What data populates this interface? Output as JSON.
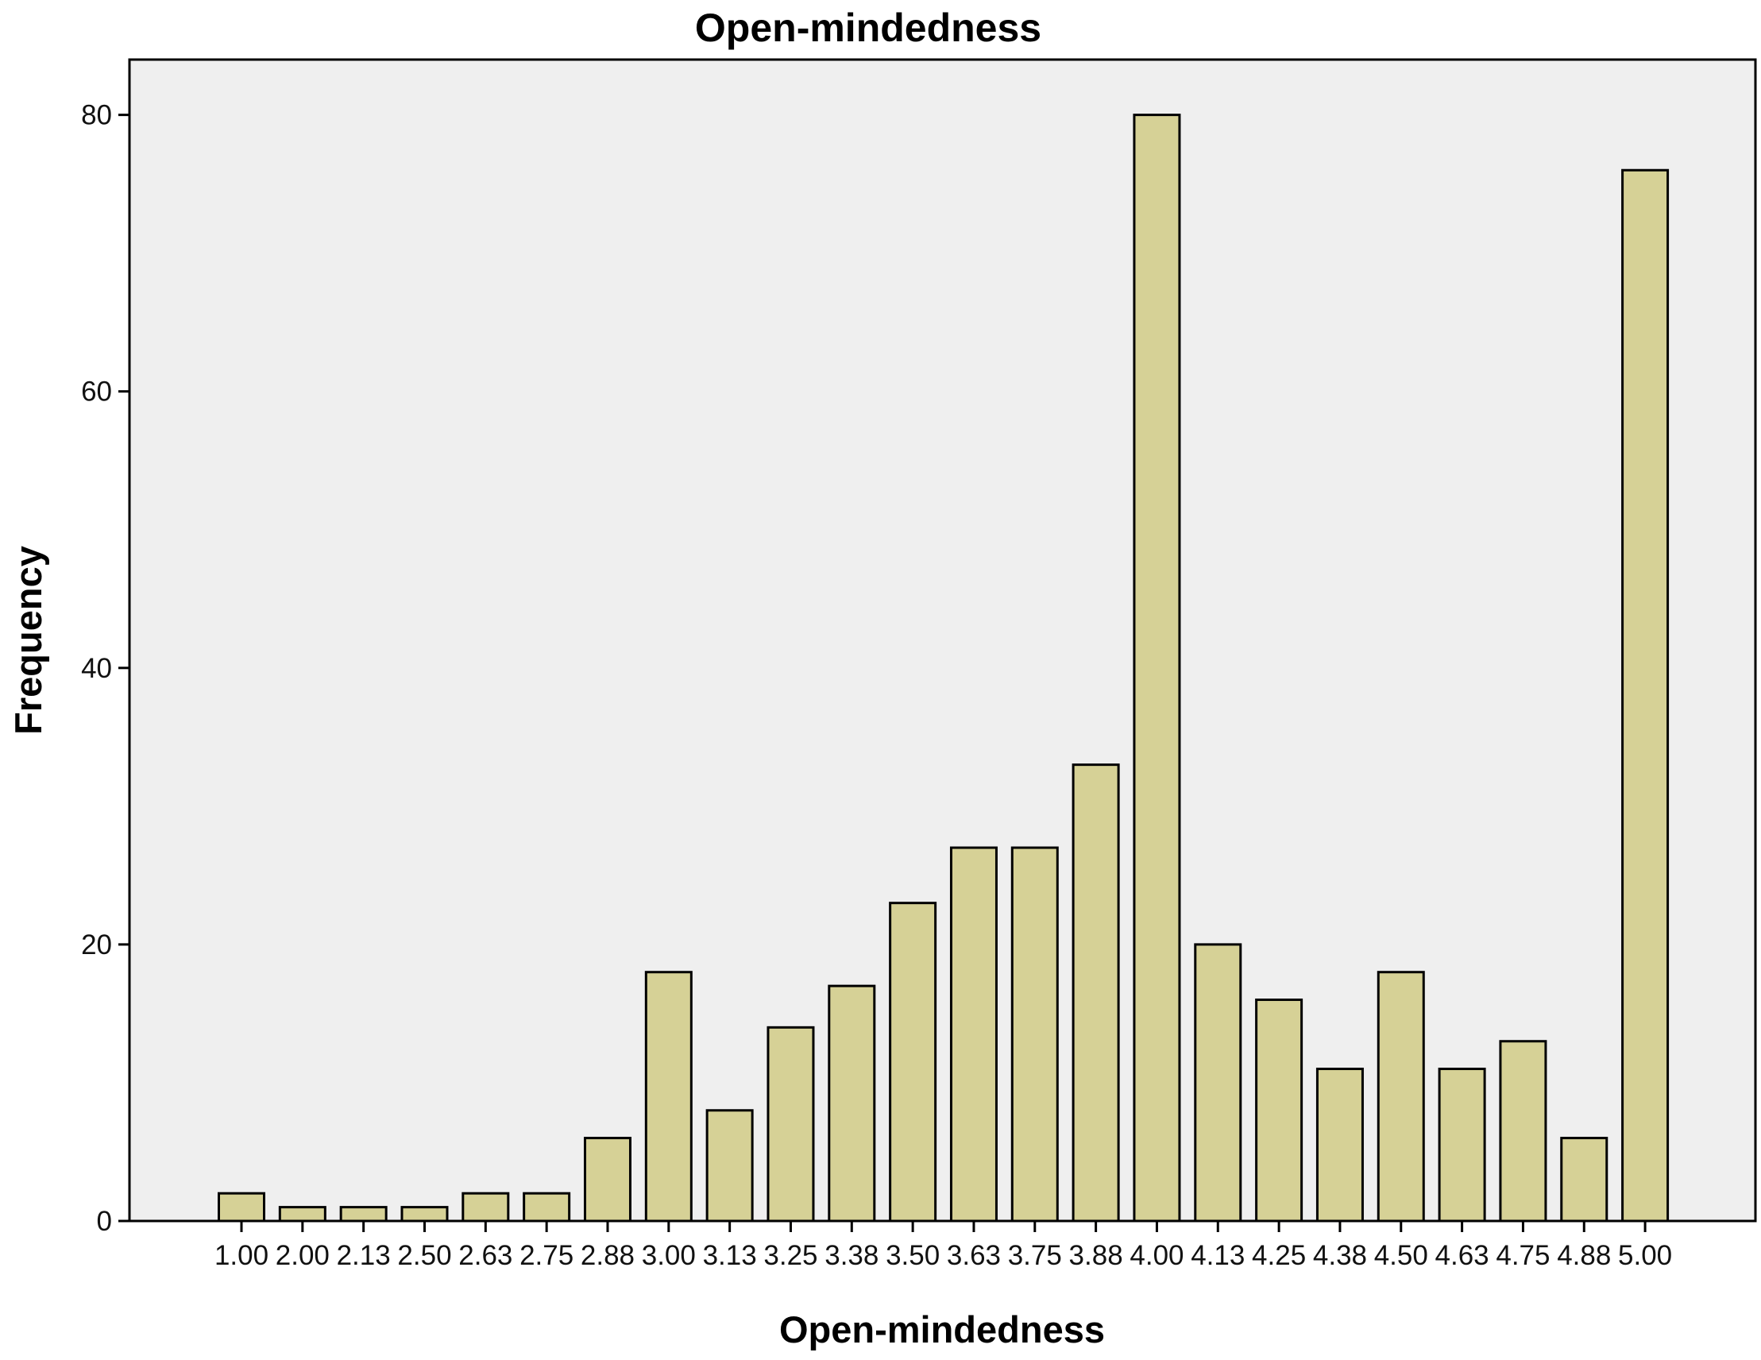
{
  "chart_data": {
    "type": "bar",
    "title": "Open-mindedness",
    "xlabel": "Open-mindedness",
    "ylabel": "Frequency",
    "categories": [
      "1.00",
      "2.00",
      "2.13",
      "2.50",
      "2.63",
      "2.75",
      "2.88",
      "3.00",
      "3.13",
      "3.25",
      "3.38",
      "3.50",
      "3.63",
      "3.75",
      "3.88",
      "4.00",
      "4.13",
      "4.25",
      "4.38",
      "4.50",
      "4.63",
      "4.75",
      "4.88",
      "5.00"
    ],
    "values": [
      2,
      1,
      1,
      1,
      2,
      2,
      6,
      18,
      8,
      14,
      17,
      23,
      27,
      27,
      33,
      80,
      20,
      16,
      11,
      18,
      11,
      13,
      6,
      76
    ],
    "ylim": [
      0,
      84
    ],
    "yticks": [
      0,
      20,
      40,
      60,
      80
    ],
    "grid": false,
    "colors": {
      "bar_fill": "#d6d196",
      "plot_background": "#efefef",
      "bar_stroke": "#000000"
    }
  }
}
